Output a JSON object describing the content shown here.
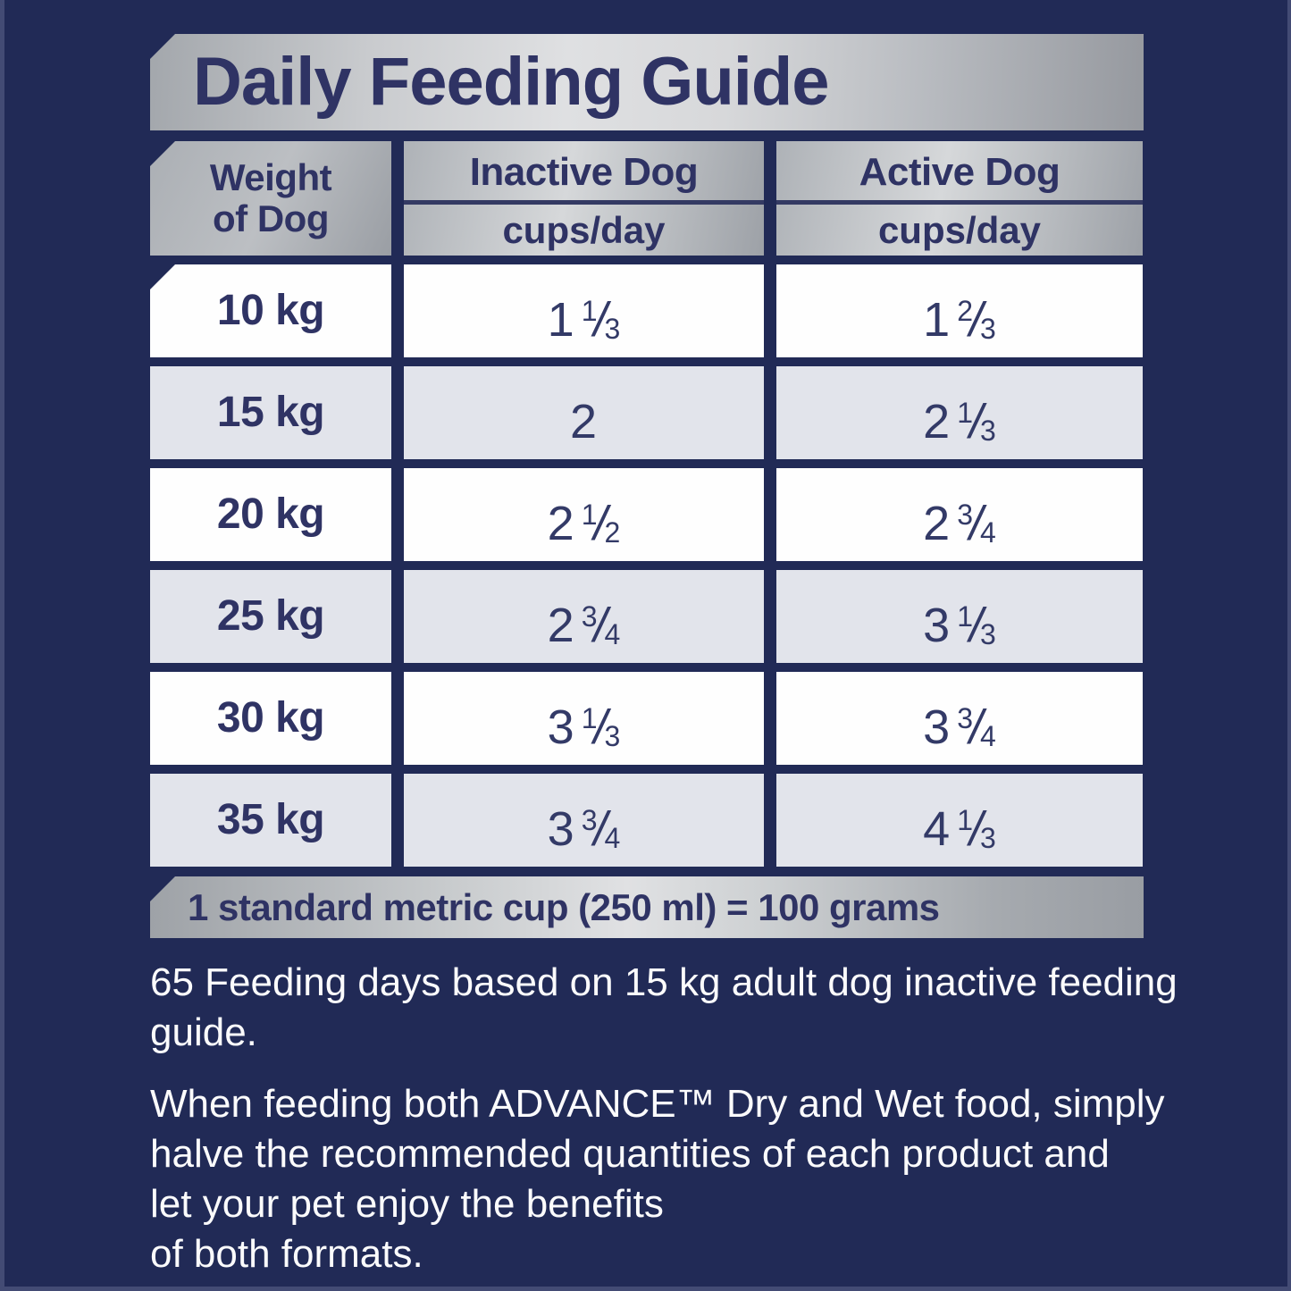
{
  "palette": {
    "background_navy": "#212A56",
    "text_navy": "#2F3364",
    "row_white": "#FEFEFE",
    "row_grey": "#E2E4EB",
    "metallic_silver_light": "#E0E1E3",
    "metallic_silver_dark": "#999DA3",
    "note_text_white": "#FBFBFC"
  },
  "title_banner": {
    "text": "Daily Feeding Guide"
  },
  "table": {
    "weight_header": {
      "line1": "Weight",
      "line2": "of Dog"
    },
    "columns": [
      {
        "title": "Inactive Dog",
        "subtitle": "cups/day"
      },
      {
        "title": "Active Dog",
        "subtitle": "cups/day"
      }
    ],
    "rows": [
      {
        "weight": "10 kg",
        "inactive": {
          "whole": "1",
          "num": "1",
          "slash": "/",
          "den": "3"
        },
        "active": {
          "whole": "1",
          "num": "2",
          "slash": "/",
          "den": "3"
        }
      },
      {
        "weight": "15 kg",
        "inactive": {
          "whole": "2",
          "num": "",
          "slash": "",
          "den": ""
        },
        "active": {
          "whole": "2",
          "num": "1",
          "slash": "/",
          "den": "3"
        }
      },
      {
        "weight": "20 kg",
        "inactive": {
          "whole": "2",
          "num": "1",
          "slash": "/",
          "den": "2"
        },
        "active": {
          "whole": "2",
          "num": "3",
          "slash": "/",
          "den": "4"
        }
      },
      {
        "weight": "25 kg",
        "inactive": {
          "whole": "2",
          "num": "3",
          "slash": "/",
          "den": "4"
        },
        "active": {
          "whole": "3",
          "num": "1",
          "slash": "/",
          "den": "3"
        }
      },
      {
        "weight": "30 kg",
        "inactive": {
          "whole": "3",
          "num": "1",
          "slash": "/",
          "den": "3"
        },
        "active": {
          "whole": "3",
          "num": "3",
          "slash": "/",
          "den": "4"
        }
      },
      {
        "weight": "35 kg",
        "inactive": {
          "whole": "3",
          "num": "3",
          "slash": "/",
          "den": "4"
        },
        "active": {
          "whole": "4",
          "num": "1",
          "slash": "/",
          "den": "3"
        }
      }
    ]
  },
  "footer_bar": {
    "text": "1 standard metric cup (250 ml) = 100 grams"
  },
  "notes": {
    "p1": {
      "lines": [
        "65 Feeding days based on 15 kg adult dog inactive feeding",
        "guide."
      ]
    },
    "p2": {
      "lines": [
        "When feeding both ADVANCE™ Dry and Wet food, simply",
        "halve the recommended quantities of each product and",
        "let your pet enjoy the benefits",
        "of both formats."
      ]
    }
  }
}
